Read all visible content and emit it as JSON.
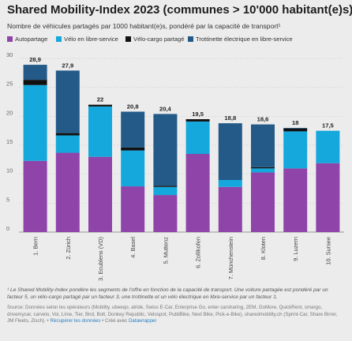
{
  "title": "Shared Mobility-Index 2023 (communes > 10'000 habitant(e)s)",
  "subtitle": "Nombre de véhicules partagés par 1000 habitant(e)s, pondéré par la capacité de transport¹",
  "legend": [
    {
      "name": "Autopartage",
      "color": "#8e44a8"
    },
    {
      "name": "Vélo en libre-service",
      "color": "#14a8dc"
    },
    {
      "name": "Vélo-cargo partagé",
      "color": "#111111"
    },
    {
      "name": "Trottinette électrique en libre-service",
      "color": "#235a88"
    }
  ],
  "chart_data": {
    "type": "bar",
    "stacked": true,
    "categories": [
      "1. Bern",
      "2. Zürich",
      "3. Ecublens (VD)",
      "4. Basel",
      "5. Muttenz",
      "6. Zollikofen",
      "7. Münchenstein",
      "8. Kloten",
      "9. Luzern",
      "10. Sursee"
    ],
    "series": [
      {
        "name": "Autopartage",
        "color": "#8e44a8",
        "values": [
          12.3,
          13.7,
          13.0,
          7.9,
          6.4,
          13.5,
          7.8,
          10.3,
          11.0,
          11.9
        ]
      },
      {
        "name": "Vélo en libre-service",
        "color": "#14a8dc",
        "values": [
          13.1,
          3.0,
          8.7,
          6.2,
          1.4,
          5.6,
          1.2,
          0.7,
          6.4,
          5.6
        ]
      },
      {
        "name": "Vélo-cargo partagé",
        "color": "#111111",
        "values": [
          0.9,
          0.4,
          0.3,
          0.5,
          0.2,
          0.4,
          0.0,
          0.2,
          0.5,
          0.0
        ]
      },
      {
        "name": "Trottinette électrique en libre-service",
        "color": "#235a88",
        "values": [
          2.6,
          10.8,
          0.0,
          6.2,
          12.4,
          0.0,
          9.8,
          7.4,
          0.1,
          0.0
        ]
      }
    ],
    "totals": [
      "28,9",
      "27,9",
      "22",
      "20,8",
      "20,4",
      "19,5",
      "18,8",
      "18,6",
      "18",
      "17,5"
    ],
    "ylim": [
      0,
      30
    ],
    "yticks": [
      0,
      5,
      10,
      15,
      20,
      25,
      30
    ],
    "ytick_labels": [
      "0",
      "5",
      "10",
      "15",
      "20",
      "25",
      "30"
    ],
    "grid": true
  },
  "footnote": "¹ Le Shared Mobility-Index pondère les segments de l'offre en fonction de la capacité de transport. Une voiture partagée est pondéré par un facteur 5, un vélo-cargo partagé par un facteur 3, une trottinette et un vélo électrique en libre-service par un facteur 1.",
  "source": {
    "text": "Source: Données selon les opérateurs (Mobility, ubeeqo, alride, Swiss E-Car, Enterprise Go, enter carsharing, 2EM, GoMore, QuickRent, smargo, drivemycar, carvelo, Voi, Lime, Tier, Bird, Bolt, Donkey Republic, Velospot, PubliBike, Next Bike, Pick-e-Bike), sharedmobility.ch (Sprint-Car, Share Birrer, JM Fleets, Zisch). •",
    "download_link": "Récupérer les données",
    "separator": " • ",
    "created_with": "Créé avec",
    "tool_link": "Datawrapper"
  }
}
